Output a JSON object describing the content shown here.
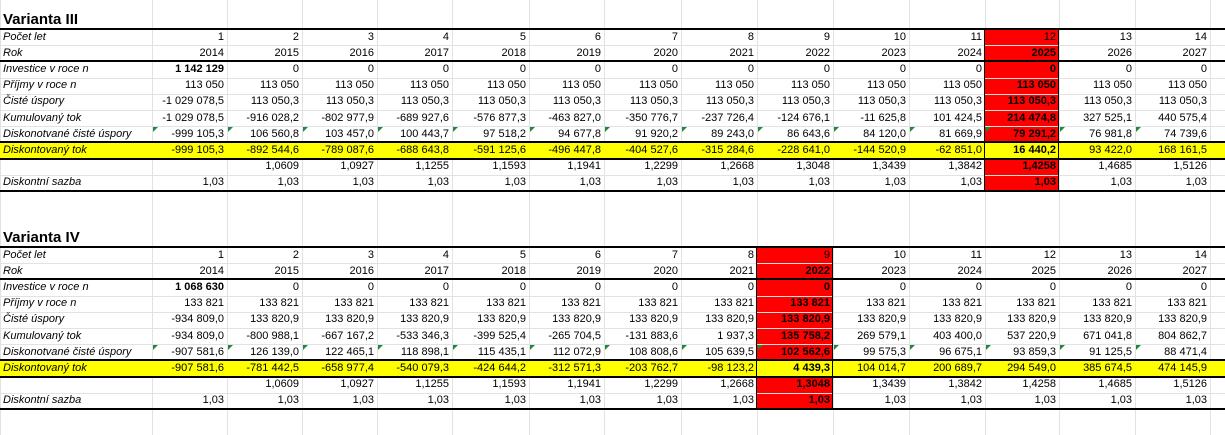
{
  "colors": {
    "highlight_column": "#ff0000",
    "highlight_row": "#ffff00",
    "gridline": "#e2e2e2",
    "error_indicator": "#1f8a3a"
  },
  "varianta3": {
    "title": "Varianta III",
    "highlight_col": 11,
    "rows": [
      {
        "key": "pocet",
        "label": "Počet let",
        "values": [
          "1",
          "2",
          "3",
          "4",
          "5",
          "6",
          "7",
          "8",
          "9",
          "10",
          "11",
          "12",
          "13",
          "14"
        ]
      },
      {
        "key": "rok",
        "label": "Rok",
        "values": [
          "2014",
          "2015",
          "2016",
          "2017",
          "2018",
          "2019",
          "2020",
          "2021",
          "2022",
          "2023",
          "2024",
          "2025",
          "2026",
          "2027"
        ]
      },
      {
        "key": "investice",
        "label": "Investice v roce n",
        "values": [
          "1 142 129",
          "0",
          "0",
          "0",
          "0",
          "0",
          "0",
          "0",
          "0",
          "0",
          "0",
          "0",
          "0",
          "0"
        ]
      },
      {
        "key": "prijmy",
        "label": "Příjmy v roce n",
        "values": [
          "113 050",
          "113 050",
          "113 050",
          "113 050",
          "113 050",
          "113 050",
          "113 050",
          "113 050",
          "113 050",
          "113 050",
          "113 050",
          "113 050",
          "113 050",
          "113 050"
        ]
      },
      {
        "key": "ciste",
        "label": "Čisté úspory",
        "values": [
          "-1 029 078,5",
          "113 050,3",
          "113 050,3",
          "113 050,3",
          "113 050,3",
          "113 050,3",
          "113 050,3",
          "113 050,3",
          "113 050,3",
          "113 050,3",
          "113 050,3",
          "113 050,3",
          "113 050,3",
          "113 050,3"
        ]
      },
      {
        "key": "kumul",
        "label": "Kumulovaný tok",
        "values": [
          "-1 029 078,5",
          "-916 028,2",
          "-802 977,9",
          "-689 927,6",
          "-576 877,3",
          "-463 827,0",
          "-350 776,7",
          "-237 726,4",
          "-124 676,1",
          "-11 625,8",
          "101 424,5",
          "214 474,8",
          "327 525,1",
          "440 575,4"
        ]
      },
      {
        "key": "diskc",
        "label": "Diskonotvané čisté úspory",
        "values": [
          "-999 105,3",
          "106 560,8",
          "103 457,0",
          "100 443,7",
          "97 518,2",
          "94 677,8",
          "91 920,2",
          "89 243,0",
          "86 643,6",
          "84 120,0",
          "81 669,9",
          "79 291,2",
          "76 981,8",
          "74 739,6"
        ]
      },
      {
        "key": "disktok",
        "label": "Diskontovaný tok",
        "values": [
          "-999 105,3",
          "-892 544,6",
          "-789 087,6",
          "-688 643,8",
          "-591 125,6",
          "-496 447,8",
          "-404 527,6",
          "-315 284,6",
          "-228 641,0",
          "-144 520,9",
          "-62 851,0",
          "16 440,2",
          "93 422,0",
          "168 161,5"
        ]
      },
      {
        "key": "faktor",
        "label": "",
        "values": [
          "",
          "1,0609",
          "1,0927",
          "1,1255",
          "1,1593",
          "1,1941",
          "1,2299",
          "1,2668",
          "1,3048",
          "1,3439",
          "1,3842",
          "1,4258",
          "1,4685",
          "1,5126"
        ]
      },
      {
        "key": "sazba",
        "label": "Diskontní sazba",
        "values": [
          "1,03",
          "1,03",
          "1,03",
          "1,03",
          "1,03",
          "1,03",
          "1,03",
          "1,03",
          "1,03",
          "1,03",
          "1,03",
          "1,03",
          "1,03",
          "1,03"
        ]
      }
    ]
  },
  "varianta4": {
    "title": "Varianta IV",
    "highlight_col": 8,
    "rows": [
      {
        "key": "pocet",
        "label": "Počet let",
        "values": [
          "1",
          "2",
          "3",
          "4",
          "5",
          "6",
          "7",
          "8",
          "9",
          "10",
          "11",
          "12",
          "13",
          "14"
        ]
      },
      {
        "key": "rok",
        "label": "Rok",
        "values": [
          "2014",
          "2015",
          "2016",
          "2017",
          "2018",
          "2019",
          "2020",
          "2021",
          "2022",
          "2023",
          "2024",
          "2025",
          "2026",
          "2027"
        ]
      },
      {
        "key": "investice",
        "label": "Investice v roce n",
        "values": [
          "1 068 630",
          "0",
          "0",
          "0",
          "0",
          "0",
          "0",
          "0",
          "0",
          "0",
          "0",
          "0",
          "0",
          "0"
        ]
      },
      {
        "key": "prijmy",
        "label": "Příjmy v roce n",
        "values": [
          "133 821",
          "133 821",
          "133 821",
          "133 821",
          "133 821",
          "133 821",
          "133 821",
          "133 821",
          "133 821",
          "133 821",
          "133 821",
          "133 821",
          "133 821",
          "133 821"
        ]
      },
      {
        "key": "ciste",
        "label": "Čisté úspory",
        "values": [
          "-934 809,0",
          "133 820,9",
          "133 820,9",
          "133 820,9",
          "133 820,9",
          "133 820,9",
          "133 820,9",
          "133 820,9",
          "133 820,9",
          "133 820,9",
          "133 820,9",
          "133 820,9",
          "133 820,9",
          "133 820,9"
        ]
      },
      {
        "key": "kumul",
        "label": "Kumulovaný tok",
        "values": [
          "-934 809,0",
          "-800 988,1",
          "-667 167,2",
          "-533 346,3",
          "-399 525,4",
          "-265 704,5",
          "-131 883,6",
          "1 937,3",
          "135 758,2",
          "269 579,1",
          "403 400,0",
          "537 220,9",
          "671 041,8",
          "804 862,7"
        ]
      },
      {
        "key": "diskc",
        "label": "Diskonotvané čisté úspory",
        "values": [
          "-907 581,6",
          "126 139,0",
          "122 465,1",
          "118 898,1",
          "115 435,1",
          "112 072,9",
          "108 808,6",
          "105 639,5",
          "102 562,6",
          "99 575,3",
          "96 675,1",
          "93 859,3",
          "91 125,5",
          "88 471,4"
        ]
      },
      {
        "key": "disktok",
        "label": "Diskontovaný tok",
        "values": [
          "-907 581,6",
          "-781 442,5",
          "-658 977,4",
          "-540 079,3",
          "-424 644,2",
          "-312 571,3",
          "-203 762,7",
          "-98 123,2",
          "4 439,3",
          "104 014,7",
          "200 689,7",
          "294 549,0",
          "385 674,5",
          "474 145,9"
        ]
      },
      {
        "key": "faktor",
        "label": "",
        "values": [
          "",
          "1,0609",
          "1,0927",
          "1,1255",
          "1,1593",
          "1,1941",
          "1,2299",
          "1,2668",
          "1,3048",
          "1,3439",
          "1,3842",
          "1,4258",
          "1,4685",
          "1,5126"
        ]
      },
      {
        "key": "sazba",
        "label": "Diskontní sazba",
        "values": [
          "1,03",
          "1,03",
          "1,03",
          "1,03",
          "1,03",
          "1,03",
          "1,03",
          "1,03",
          "1,03",
          "1,03",
          "1,03",
          "1,03",
          "1,03",
          "1,03"
        ]
      }
    ]
  }
}
